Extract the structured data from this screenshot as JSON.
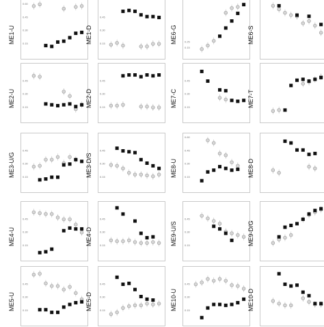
{
  "figure": {
    "marker_colors": {
      "black": "#111111",
      "gray_fill": "#d6d6d6",
      "gray_edge": "#9a9a9a",
      "errorbar": "#bdbdbd",
      "frame": "#c9c9c9"
    },
    "marker_shapes": {
      "black": "square",
      "gray": "circle"
    }
  },
  "chart_data": [
    {
      "type": "scatter",
      "panel": "ME1-U",
      "ylabel": "ME1-U",
      "ylim": [
        0,
        0.6
      ],
      "y_ticks": [
        "0.60",
        "0.45",
        "0.30",
        "0.15"
      ],
      "series": [
        {
          "marker": "gray",
          "x": [
            1,
            2,
            6,
            8,
            9
          ],
          "y": [
            0.57,
            0.59,
            0.54,
            0.56,
            0.57
          ]
        },
        {
          "marker": "black",
          "x": [
            3,
            4,
            5,
            6,
            7,
            8,
            9
          ],
          "y": [
            0.12,
            0.11,
            0.16,
            0.17,
            0.21,
            0.26,
            0.27
          ]
        }
      ]
    },
    {
      "type": "scatter",
      "panel": "ME1-D",
      "ylabel": "ME1-D",
      "ylim": [
        0,
        0.6
      ],
      "y_ticks": [
        "0.45",
        "0.30",
        "0.15"
      ],
      "series": [
        {
          "marker": "black",
          "x": [
            3,
            4,
            5,
            6,
            7,
            8,
            9
          ],
          "y": [
            0.51,
            0.52,
            0.51,
            0.47,
            0.45,
            0.45,
            0.44
          ]
        },
        {
          "marker": "gray",
          "x": [
            1,
            2,
            3,
            6,
            7,
            8,
            9
          ],
          "y": [
            0.13,
            0.15,
            0.12,
            0.11,
            0.11,
            0.14,
            0.14
          ]
        }
      ]
    },
    {
      "type": "scatter",
      "panel": "ME6-G",
      "ylabel": "ME6-G",
      "ylim": [
        0,
        0.9
      ],
      "y_ticks": [
        "0.15",
        "0.25"
      ],
      "series": [
        {
          "marker": "gray",
          "x": [
            2,
            3,
            4,
            6,
            7,
            8
          ],
          "y": [
            0.12,
            0.18,
            0.26,
            0.74,
            0.82,
            0.84
          ]
        },
        {
          "marker": "black",
          "x": [
            5,
            6,
            7,
            8,
            9
          ],
          "y": [
            0.34,
            0.48,
            0.6,
            0.73,
            0.88
          ]
        }
      ]
    },
    {
      "type": "scatter",
      "panel": "ME6-S",
      "ylabel": "ME6-S",
      "ylim": [
        0,
        0.9
      ],
      "y_ticks": [],
      "series": [
        {
          "marker": "black",
          "x": [
            2,
            5,
            7,
            9
          ],
          "y": [
            0.86,
            0.7,
            0.68,
            0.54
          ]
        },
        {
          "marker": "gray",
          "x": [
            1,
            2,
            3,
            4,
            5,
            6,
            7,
            8,
            9
          ],
          "y": [
            0.86,
            0.8,
            0.74,
            0.7,
            0.68,
            0.56,
            0.6,
            0.52,
            0.4
          ]
        }
      ]
    },
    {
      "type": "scatter",
      "panel": "ME2-U",
      "ylabel": "ME2-U",
      "ylim": [
        0,
        0.6
      ],
      "y_ticks": [
        "0.45",
        "0.30",
        "0.15"
      ],
      "series": [
        {
          "marker": "gray",
          "x": [
            1,
            2,
            6,
            7,
            8,
            9
          ],
          "y": [
            0.5,
            0.49,
            0.32,
            0.27,
            0.12,
            0.17
          ]
        },
        {
          "marker": "black",
          "x": [
            3,
            4,
            5,
            6,
            7,
            8,
            9
          ],
          "y": [
            0.18,
            0.17,
            0.16,
            0.17,
            0.18,
            0.15,
            0.17
          ]
        }
      ]
    },
    {
      "type": "scatter",
      "panel": "ME2-D",
      "ylabel": "ME2-D",
      "ylim": [
        0,
        0.6
      ],
      "y_ticks": [
        "0.45",
        "0.30",
        "0.15"
      ],
      "series": [
        {
          "marker": "black",
          "x": [
            3,
            4,
            5,
            6,
            7,
            8,
            9
          ],
          "y": [
            0.5,
            0.51,
            0.51,
            0.49,
            0.51,
            0.5,
            0.51
          ]
        },
        {
          "marker": "gray",
          "x": [
            1,
            2,
            3,
            6,
            7,
            8,
            9
          ],
          "y": [
            0.16,
            0.16,
            0.17,
            0.15,
            0.15,
            0.14,
            0.14
          ]
        }
      ]
    },
    {
      "type": "scatter",
      "panel": "ME7-C",
      "ylabel": "ME7-C",
      "ylim": [
        0,
        0.6
      ],
      "y_ticks": [
        "0.45",
        "0.30",
        "0.15"
      ],
      "series": [
        {
          "marker": "black",
          "x": [
            2,
            3,
            5,
            6,
            7,
            8,
            9
          ],
          "y": [
            0.55,
            0.44,
            0.34,
            0.33,
            0.22,
            0.21,
            0.22
          ]
        },
        {
          "marker": "gray",
          "x": [
            5,
            6
          ],
          "y": [
            0.25,
            0.23
          ]
        }
      ]
    },
    {
      "type": "scatter",
      "panel": "ME7-T",
      "ylabel": "ME7-T",
      "ylim": [
        0,
        0.6
      ],
      "y_ticks": [],
      "series": [
        {
          "marker": "black",
          "x": [
            3,
            4,
            5,
            6,
            7,
            8,
            9
          ],
          "y": [
            0.11,
            0.39,
            0.45,
            0.46,
            0.44,
            0.46,
            0.48
          ]
        },
        {
          "marker": "gray",
          "x": [
            1,
            2,
            6,
            7,
            8,
            9
          ],
          "y": [
            0.1,
            0.11,
            0.41,
            0.43,
            0.46,
            0.49
          ]
        }
      ]
    },
    {
      "type": "scatter",
      "panel": "ME3-U/G",
      "ylabel": "ME3-U/G",
      "ylim": [
        0,
        0.6
      ],
      "y_ticks": [
        "0.45",
        "0.30",
        "0.15"
      ],
      "series": [
        {
          "marker": "gray",
          "x": [
            1,
            2,
            3,
            4,
            5,
            6,
            7,
            8
          ],
          "y": [
            0.26,
            0.27,
            0.34,
            0.34,
            0.37,
            0.3,
            0.37,
            0.34
          ]
        },
        {
          "marker": "black",
          "x": [
            2,
            3,
            4,
            5,
            6,
            7,
            8,
            9
          ],
          "y": [
            0.11,
            0.12,
            0.14,
            0.14,
            0.28,
            0.29,
            0.34,
            0.32
          ]
        }
      ]
    },
    {
      "type": "scatter",
      "panel": "ME3-D/S",
      "ylabel": "ME3-D/S",
      "ylim": [
        0,
        0.6
      ],
      "y_ticks": [
        "0.45",
        "0.30",
        "0.15"
      ],
      "series": [
        {
          "marker": "black",
          "x": [
            2,
            3,
            4,
            5,
            6,
            7,
            8,
            9
          ],
          "y": [
            0.47,
            0.44,
            0.43,
            0.42,
            0.34,
            0.3,
            0.27,
            0.24
          ]
        },
        {
          "marker": "gray",
          "x": [
            1,
            2,
            3,
            4,
            5,
            6,
            7,
            8,
            9
          ],
          "y": [
            0.28,
            0.27,
            0.24,
            0.19,
            0.17,
            0.17,
            0.16,
            0.15,
            0.17
          ]
        }
      ]
    },
    {
      "type": "scatter",
      "panel": "ME8-U",
      "ylabel": "ME8-U",
      "ylim": [
        0,
        0.6
      ],
      "y_ticks": [
        "0.60",
        "0.45",
        "0.30",
        "0.15"
      ],
      "series": [
        {
          "marker": "gray",
          "x": [
            3,
            4,
            5,
            6,
            7,
            8
          ],
          "y": [
            0.56,
            0.53,
            0.41,
            0.39,
            0.31,
            0.27
          ]
        },
        {
          "marker": "black",
          "x": [
            2,
            3,
            4,
            5,
            6,
            7,
            8
          ],
          "y": [
            0.1,
            0.2,
            0.22,
            0.26,
            0.24,
            0.22,
            0.23
          ]
        }
      ]
    },
    {
      "type": "scatter",
      "panel": "ME8-D",
      "ylabel": "ME8-D",
      "ylim": [
        0,
        0.6
      ],
      "y_ticks": [],
      "series": [
        {
          "marker": "black",
          "x": [
            3,
            4,
            5,
            6,
            7,
            8
          ],
          "y": [
            0.55,
            0.53,
            0.45,
            0.45,
            0.4,
            0.41
          ]
        },
        {
          "marker": "gray",
          "x": [
            1,
            2,
            7,
            8
          ],
          "y": [
            0.22,
            0.19,
            0.26,
            0.24
          ]
        }
      ]
    },
    {
      "type": "scatter",
      "panel": "ME4-U",
      "ylabel": "ME4-U",
      "ylim": [
        0,
        0.6
      ],
      "y_ticks": [
        "0.45",
        "0.30",
        "0.15"
      ],
      "series": [
        {
          "marker": "gray",
          "x": [
            1,
            2,
            3,
            4,
            5,
            6,
            7,
            8,
            9
          ],
          "y": [
            0.52,
            0.51,
            0.5,
            0.5,
            0.46,
            0.44,
            0.44,
            0.38,
            0.29
          ]
        },
        {
          "marker": "black",
          "x": [
            2,
            3,
            4,
            6,
            7,
            8,
            9
          ],
          "y": [
            0.06,
            0.07,
            0.1,
            0.31,
            0.34,
            0.33,
            0.33
          ]
        }
      ]
    },
    {
      "type": "scatter",
      "panel": "ME4-D",
      "ylabel": "ME4-D",
      "ylim": [
        0,
        0.6
      ],
      "y_ticks": [
        "0.45",
        "0.30",
        "0.15"
      ],
      "series": [
        {
          "marker": "black",
          "x": [
            2,
            3,
            5,
            6,
            7,
            8
          ],
          "y": [
            0.57,
            0.5,
            0.42,
            0.28,
            0.23,
            0.24
          ]
        },
        {
          "marker": "gray",
          "x": [
            1,
            2,
            3,
            4,
            5,
            6,
            7,
            8,
            9
          ],
          "y": [
            0.2,
            0.19,
            0.19,
            0.2,
            0.18,
            0.17,
            0.17,
            0.18,
            0.17
          ]
        }
      ]
    },
    {
      "type": "scatter",
      "panel": "ME9-U/S",
      "ylabel": "ME9-U/S",
      "ylim": [
        0,
        0.6
      ],
      "y_ticks": [
        "0.45",
        "0.30",
        "0.15"
      ],
      "series": [
        {
          "marker": "gray",
          "x": [
            2,
            3,
            4,
            5,
            6,
            7,
            8,
            9
          ],
          "y": [
            0.48,
            0.45,
            0.42,
            0.39,
            0.3,
            0.28,
            0.26,
            0.24
          ]
        },
        {
          "marker": "black",
          "x": [
            4,
            5,
            6,
            7
          ],
          "y": [
            0.36,
            0.33,
            0.28,
            0.2
          ]
        }
      ]
    },
    {
      "type": "scatter",
      "panel": "ME9-D/G",
      "ylabel": "ME9-D/G",
      "ylim": [
        0,
        0.6
      ],
      "y_ticks": [],
      "series": [
        {
          "marker": "black",
          "x": [
            2,
            3,
            4,
            5,
            6,
            7,
            8,
            9
          ],
          "y": [
            0.24,
            0.35,
            0.37,
            0.39,
            0.44,
            0.5,
            0.54,
            0.56
          ]
        },
        {
          "marker": "gray",
          "x": [
            1,
            2,
            3,
            4,
            6,
            7,
            8,
            9
          ],
          "y": [
            0.17,
            0.21,
            0.23,
            0.26,
            0.44,
            0.49,
            0.52,
            0.55
          ]
        }
      ]
    },
    {
      "type": "scatter",
      "panel": "ME5-U",
      "ylabel": "ME5-U",
      "ylim": [
        0,
        0.6
      ],
      "y_ticks": [
        "0.45",
        "0.30",
        "0.15"
      ],
      "series": [
        {
          "marker": "gray",
          "x": [
            1,
            2,
            3,
            4,
            5,
            6,
            7,
            8,
            9
          ],
          "y": [
            0.55,
            0.56,
            0.45,
            0.42,
            0.42,
            0.38,
            0.41,
            0.34,
            0.27
          ]
        },
        {
          "marker": "black",
          "x": [
            2,
            3,
            4,
            5,
            6,
            7,
            8,
            9
          ],
          "y": [
            0.15,
            0.15,
            0.12,
            0.12,
            0.18,
            0.21,
            0.23,
            0.24
          ]
        }
      ]
    },
    {
      "type": "scatter",
      "panel": "ME5-D",
      "ylabel": "ME5-D",
      "ylim": [
        0,
        0.6
      ],
      "y_ticks": [
        "0.45",
        "0.30",
        "0.15"
      ],
      "series": [
        {
          "marker": "black",
          "x": [
            2,
            3,
            4,
            5,
            6,
            7,
            8
          ],
          "y": [
            0.52,
            0.44,
            0.45,
            0.38,
            0.3,
            0.27,
            0.26
          ]
        },
        {
          "marker": "gray",
          "x": [
            1,
            2,
            3,
            4,
            5,
            6,
            7,
            8,
            9
          ],
          "y": [
            0.1,
            0.12,
            0.17,
            0.19,
            0.2,
            0.2,
            0.22,
            0.21,
            0.22
          ]
        }
      ]
    },
    {
      "type": "scatter",
      "panel": "ME10-U",
      "ylabel": "ME10-U",
      "ylim": [
        0,
        0.6
      ],
      "y_ticks": [
        "0.45",
        "0.30",
        "0.15"
      ],
      "series": [
        {
          "marker": "gray",
          "x": [
            1,
            2,
            3,
            4,
            5,
            6,
            7,
            8,
            9
          ],
          "y": [
            0.44,
            0.46,
            0.5,
            0.48,
            0.5,
            0.48,
            0.43,
            0.42,
            0.39
          ]
        },
        {
          "marker": "black",
          "x": [
            2,
            3,
            4,
            5,
            6,
            7,
            8,
            9
          ],
          "y": [
            0.06,
            0.17,
            0.21,
            0.21,
            0.2,
            0.21,
            0.23,
            0.27
          ]
        }
      ]
    },
    {
      "type": "scatter",
      "panel": "ME10-D",
      "ylabel": "ME10-D",
      "ylim": [
        0,
        0.6
      ],
      "y_ticks": [],
      "series": [
        {
          "marker": "black",
          "x": [
            2,
            3,
            4,
            5,
            6,
            7,
            8,
            9
          ],
          "y": [
            0.56,
            0.44,
            0.42,
            0.43,
            0.35,
            0.31,
            0.22,
            0.22
          ]
        },
        {
          "marker": "gray",
          "x": [
            1,
            2,
            3,
            4,
            6,
            7,
            8,
            9
          ],
          "y": [
            0.25,
            0.22,
            0.2,
            0.2,
            0.28,
            0.24,
            0.21,
            0.21
          ]
        }
      ]
    }
  ]
}
